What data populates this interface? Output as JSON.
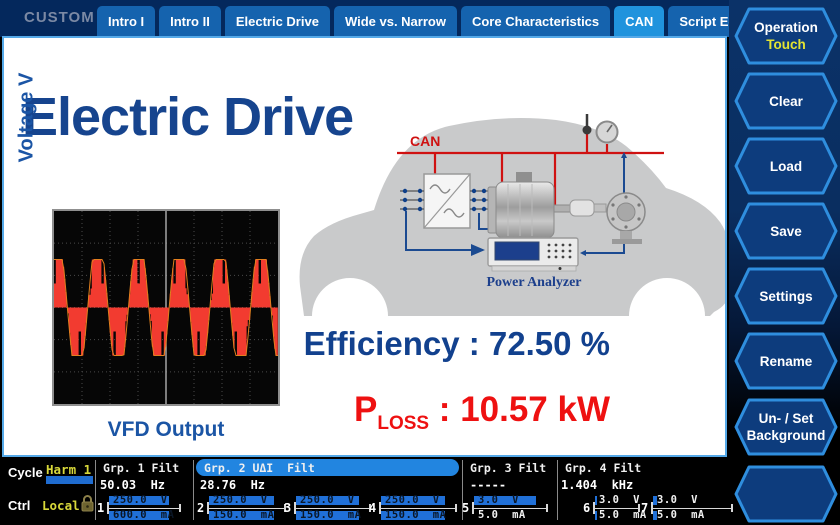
{
  "topbar": {
    "brand": "CUSTOM",
    "tabs": [
      {
        "label": "Intro I",
        "active": false
      },
      {
        "label": "Intro II",
        "active": false
      },
      {
        "label": "Electric Drive",
        "active": false
      },
      {
        "label": "Wide vs. Narrow",
        "active": false
      },
      {
        "label": "Core Characteristics",
        "active": false
      },
      {
        "label": "CAN",
        "active": true
      },
      {
        "label": "Script Editor",
        "active": false
      }
    ]
  },
  "sidebar": {
    "buttons": [
      {
        "id": "operation",
        "label": "Operation",
        "accent": "Touch"
      },
      {
        "id": "clear",
        "label": "Clear"
      },
      {
        "id": "load",
        "label": "Load"
      },
      {
        "id": "save",
        "label": "Save"
      },
      {
        "id": "settings",
        "label": "Settings"
      },
      {
        "id": "rename",
        "label": "Rename"
      },
      {
        "id": "background",
        "label": "Un- / Set",
        "label2": "Background"
      },
      {
        "id": "blank",
        "label": ""
      }
    ]
  },
  "main": {
    "title": "Electric Drive",
    "scope": {
      "ylabel": "Voltage V",
      "caption": "VFD Output"
    },
    "diagram": {
      "bus_label": "CAN",
      "device_label": "Power Analyzer"
    },
    "metrics": {
      "efficiency_label": "Efficiency",
      "sep": " : ",
      "efficiency_value": "72.50 %",
      "ploss_base": "P",
      "ploss_sub": "LOSS",
      "ploss_value": "10.57 kW"
    }
  },
  "statusbar": {
    "cycle_label": "Cycle",
    "cycle_value": "Harm 1",
    "ctrl_label": "Ctrl",
    "ctrl_value": "Local",
    "lock_icon": "padlock",
    "groups": [
      {
        "name": "Grp. 1 Filt",
        "freq": "50.03  Hz",
        "selected": false
      },
      {
        "name": "Grp. 2 UΔI  Filt",
        "freq": "28.76  Hz",
        "selected": true
      },
      {
        "name": "Grp. 3 Filt",
        "freq": "-----",
        "selected": false
      },
      {
        "name": "Grp. 4 Filt",
        "freq": "1.404  kHz",
        "selected": false
      }
    ],
    "channels": [
      {
        "num": "1",
        "v": "250.0  V",
        "i": "600.0  mA",
        "vfill": 1.0,
        "ifill": 1.0
      },
      {
        "num": "2",
        "v": "250.0  V",
        "i": "150.0  mA",
        "vfill": 1.0,
        "ifill": 1.0
      },
      {
        "num": "3",
        "v": "250.0  V",
        "i": "150.0  mA",
        "vfill": 1.0,
        "ifill": 1.0
      },
      {
        "num": "4",
        "v": "250.0  V",
        "i": "150.0  mA",
        "vfill": 1.0,
        "ifill": 1.0
      },
      {
        "num": "5",
        "v": "3.0  V",
        "i": "5.0  mA",
        "vfill": 1.0,
        "ifill": 0.0
      },
      {
        "num": "6",
        "v": "3.0  V",
        "i": "5.0  mA",
        "vfill": 0.06,
        "ifill": 0.06
      },
      {
        "num": "7",
        "v": "3.0  V",
        "i": "5.0  mA",
        "vfill": 0.06,
        "ifill": 0.06
      }
    ]
  },
  "chart_data": {
    "type": "line",
    "title": "VFD Output",
    "ylabel": "Voltage V",
    "description": "PWM inverter output voltage, full-amplitude pulses following a sinusoidal envelope, trigger marker at mid-screen",
    "cycles_visible": 5.5,
    "grid": "dotted 8x6 divisions",
    "trace_color": "#f23b30",
    "envelope_color": "#e2801e"
  },
  "colors": {
    "accent_blue": "#2f8ede",
    "hex_fill": "#0d3c7d",
    "tab_blue": "#1563ae",
    "tab_active": "#2093dd",
    "title_blue": "#16448e",
    "status_red": "#ee1111",
    "bar_blue": "#2070d8",
    "value_yellow": "#d8d83a"
  }
}
